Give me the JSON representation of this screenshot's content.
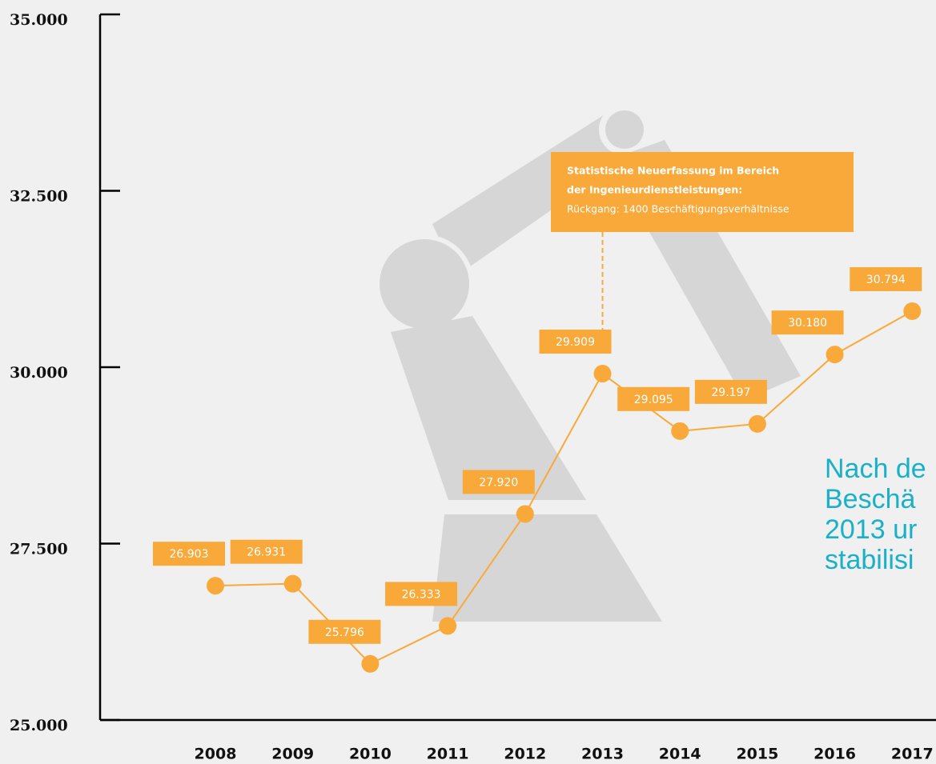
{
  "chart_data": {
    "type": "line",
    "categories": [
      "2008",
      "2009",
      "2010",
      "2011",
      "2012",
      "2013",
      "2014",
      "2015",
      "2016",
      "2017"
    ],
    "values": [
      26903,
      26931,
      25796,
      26333,
      27920,
      29909,
      29095,
      29197,
      30180,
      30794
    ],
    "value_labels": [
      "26.903",
      "26.931",
      "25.796",
      "26.333",
      "27.920",
      "29.909",
      "29.095",
      "29.197",
      "30.180",
      "30.794"
    ],
    "color": "#f9a93a",
    "ylim": [
      25000,
      35000
    ],
    "yticks": [
      {
        "value": 25000,
        "label": "25.000"
      },
      {
        "value": 27500,
        "label": "27.500"
      },
      {
        "value": 30000,
        "label": "30.000"
      },
      {
        "value": 32500,
        "label": "32.500"
      },
      {
        "value": 35000,
        "label": "35.000"
      }
    ],
    "annotation": [
      "Statistische Neuerfassung im Bereich",
      "der Ingenieurdienstleistungen:",
      "Rückgang: 1400 Beschäftigungsverhältnisse"
    ],
    "side_text": [
      "Nach de",
      "Beschä",
      "2013 ur",
      "stabilisi"
    ]
  }
}
